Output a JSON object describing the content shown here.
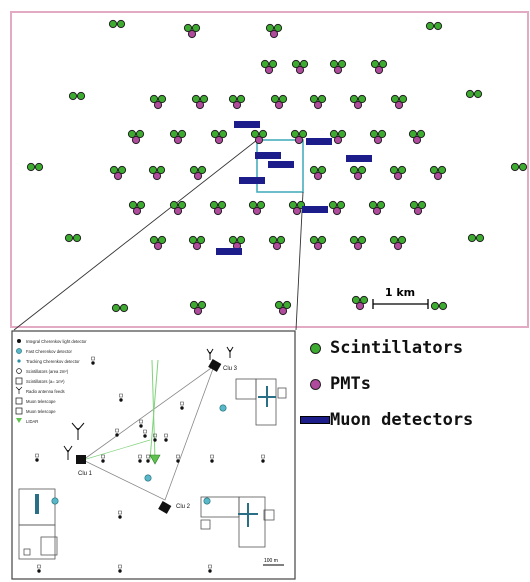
{
  "colors": {
    "frame": "#e3aac4",
    "scintillator": "#3dab2f",
    "pmt": "#b04a9c",
    "muon_detector": "#1c1c8a",
    "inset_box": "#3aa9b8",
    "inset_line": "#7fd37a"
  },
  "scale_bar": {
    "label": "1 km"
  },
  "legend": {
    "items": [
      {
        "label": "Scintillators",
        "symbol": "scintillator"
      },
      {
        "label": "PMTs",
        "symbol": "pmt"
      },
      {
        "label": "Muon detectors",
        "symbol": "muon-detector"
      }
    ]
  },
  "inset": {
    "legend": [
      "Integral Cherenkov light detector",
      "Fast Cherenkov detector",
      "Tracking Cherenkov detector",
      "Scintillators (area 2m²)",
      "Scintillators (a= 1m²)",
      "Radio antenna feeds",
      "Muon telescope",
      "Muon telescope",
      "LIDAR"
    ],
    "labels": {
      "clu1": "Clu 1",
      "clu2": "Clu 2",
      "clu3": "Clu 3",
      "scale": "100 m"
    }
  }
}
